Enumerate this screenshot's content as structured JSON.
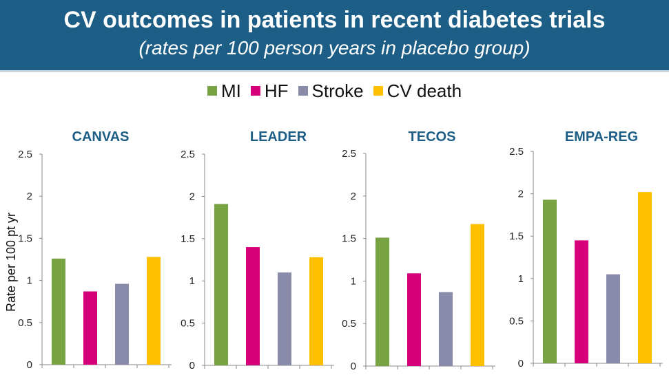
{
  "header": {
    "title": "CV outcomes in patients in recent diabetes trials",
    "subtitle": "(rates per 100 person years in placebo group)"
  },
  "colors": {
    "header_bg": "#1d5e86",
    "panel_title": "#1d5e86",
    "MI": "#77a343",
    "HF": "#d6007a",
    "Stroke": "#8a8bab",
    "CV death": "#ffc000"
  },
  "legend": [
    "MI",
    "HF",
    "Stroke",
    "CV death"
  ],
  "chart_data": [
    {
      "type": "bar",
      "title": "CANVAS",
      "ylabel": "Rate per 100 pt yr",
      "categories": [
        "MI",
        "HF",
        "Stroke",
        "CV death"
      ],
      "values": [
        1.26,
        0.87,
        0.96,
        1.28
      ],
      "ylim": [
        0,
        2.5
      ],
      "yticks": [
        "0",
        "0.5",
        "1",
        "1.5",
        "2",
        "2.5"
      ],
      "grid": false,
      "legend": "top-center"
    },
    {
      "type": "bar",
      "title": "LEADER",
      "ylabel": "",
      "categories": [
        "MI",
        "HF",
        "Stroke",
        "CV death"
      ],
      "values": [
        1.91,
        1.4,
        1.1,
        1.28
      ],
      "ylim": [
        0,
        2.5
      ],
      "yticks": [
        "0",
        "0.5",
        "1",
        "1.5",
        "2",
        "2.5"
      ],
      "grid": false,
      "legend": "top-center"
    },
    {
      "type": "bar",
      "title": "TECOS",
      "ylabel": "",
      "categories": [
        "MI",
        "HF",
        "Stroke",
        "CV death"
      ],
      "values": [
        1.51,
        1.09,
        0.87,
        1.67
      ],
      "ylim": [
        0,
        2.5
      ],
      "yticks": [
        "0",
        "0.5",
        "1",
        "1.5",
        "2",
        "2.5"
      ],
      "grid": false,
      "legend": "top-center"
    },
    {
      "type": "bar",
      "title": "EMPA-REG",
      "ylabel": "",
      "categories": [
        "MI",
        "HF",
        "Stroke",
        "CV death"
      ],
      "values": [
        1.93,
        1.45,
        1.05,
        2.02
      ],
      "ylim": [
        0,
        2.5
      ],
      "yticks": [
        "0",
        "0.5",
        "1",
        "1.5",
        "2",
        "2.5"
      ],
      "grid": false,
      "legend": "top-center"
    }
  ]
}
